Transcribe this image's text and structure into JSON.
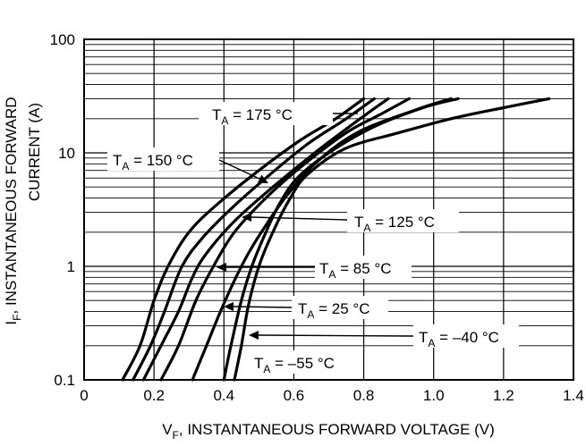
{
  "chart_data": {
    "type": "line",
    "title": "",
    "xlabel": {
      "prefix": "V",
      "sub": "F",
      "rest": ", INSTANTANEOUS FORWARD VOLTAGE (V)"
    },
    "ylabel": {
      "line1_prefix": "I",
      "line1_sub": "F",
      "line1_rest": ", INSTANTANEOUS FORWARD",
      "line2": "CURRENT (A)"
    },
    "x_scale": "linear",
    "y_scale": "log",
    "xlim": [
      0,
      1.4
    ],
    "ylim": [
      0.1,
      100
    ],
    "x_ticks": [
      "0",
      "0.2",
      "0.4",
      "0.6",
      "0.8",
      "1.0",
      "1.2",
      "1.4"
    ],
    "y_ticks": [
      "0.1",
      "1",
      "10",
      "100"
    ],
    "grid": true,
    "series": [
      {
        "name": "T_A = 175 °C",
        "label_text": "= 175 °C",
        "points": [
          [
            0.11,
            0.1
          ],
          [
            0.16,
            0.2
          ],
          [
            0.2,
            0.5
          ],
          [
            0.24,
            1.0
          ],
          [
            0.3,
            2.0
          ],
          [
            0.38,
            3.5
          ],
          [
            0.5,
            7.0
          ],
          [
            0.62,
            13
          ],
          [
            0.72,
            20
          ],
          [
            0.8,
            30
          ]
        ]
      },
      {
        "name": "T_A = 150 °C",
        "label_text": "= 150 °C",
        "points": [
          [
            0.14,
            0.1
          ],
          [
            0.19,
            0.2
          ],
          [
            0.23,
            0.4
          ],
          [
            0.28,
            1.0
          ],
          [
            0.34,
            1.8
          ],
          [
            0.42,
            3.2
          ],
          [
            0.52,
            6.0
          ],
          [
            0.64,
            12
          ],
          [
            0.75,
            20
          ],
          [
            0.83,
            30
          ]
        ]
      },
      {
        "name": "T_A = 125 °C",
        "label_text": "= 125 °C",
        "points": [
          [
            0.17,
            0.1
          ],
          [
            0.22,
            0.2
          ],
          [
            0.27,
            0.4
          ],
          [
            0.31,
            0.8
          ],
          [
            0.35,
            1.3
          ],
          [
            0.43,
            2.5
          ],
          [
            0.54,
            5.0
          ],
          [
            0.66,
            10
          ],
          [
            0.78,
            19
          ],
          [
            0.87,
            30
          ]
        ]
      },
      {
        "name": "T_A = 85 °C",
        "label_text": "= 85 °C",
        "points": [
          [
            0.22,
            0.1
          ],
          [
            0.27,
            0.2
          ],
          [
            0.32,
            0.5
          ],
          [
            0.37,
            1.0
          ],
          [
            0.43,
            2.0
          ],
          [
            0.52,
            4.0
          ],
          [
            0.62,
            7.5
          ],
          [
            0.75,
            15
          ],
          [
            0.85,
            22
          ],
          [
            0.93,
            30
          ]
        ]
      },
      {
        "name": "T_A = 25 °C",
        "label_text": "= 25 °C",
        "points": [
          [
            0.31,
            0.1
          ],
          [
            0.35,
            0.2
          ],
          [
            0.39,
            0.4
          ],
          [
            0.43,
            0.75
          ],
          [
            0.47,
            1.3
          ],
          [
            0.52,
            2.3
          ],
          [
            0.58,
            4.2
          ],
          [
            0.66,
            8.0
          ],
          [
            0.78,
            15
          ],
          [
            0.95,
            24
          ],
          [
            1.05,
            30
          ]
        ]
      },
      {
        "name": "T_A = –40 °C",
        "label_text": "= –40 °C",
        "points": [
          [
            0.4,
            0.1
          ],
          [
            0.42,
            0.2
          ],
          [
            0.45,
            0.5
          ],
          [
            0.48,
            1.0
          ],
          [
            0.52,
            2.0
          ],
          [
            0.56,
            3.6
          ],
          [
            0.61,
            6.0
          ],
          [
            0.7,
            10
          ],
          [
            0.83,
            17
          ],
          [
            0.97,
            25
          ],
          [
            1.07,
            30
          ]
        ]
      },
      {
        "name": "T_A = –55 °C",
        "label_text": "= –55 °C",
        "points": [
          [
            0.43,
            0.1
          ],
          [
            0.45,
            0.2
          ],
          [
            0.47,
            0.45
          ],
          [
            0.5,
            1.0
          ],
          [
            0.54,
            2.0
          ],
          [
            0.59,
            4.0
          ],
          [
            0.64,
            6.5
          ],
          [
            0.75,
            11
          ],
          [
            0.9,
            15
          ],
          [
            1.05,
            20
          ],
          [
            1.2,
            25
          ],
          [
            1.33,
            30
          ]
        ]
      }
    ]
  }
}
